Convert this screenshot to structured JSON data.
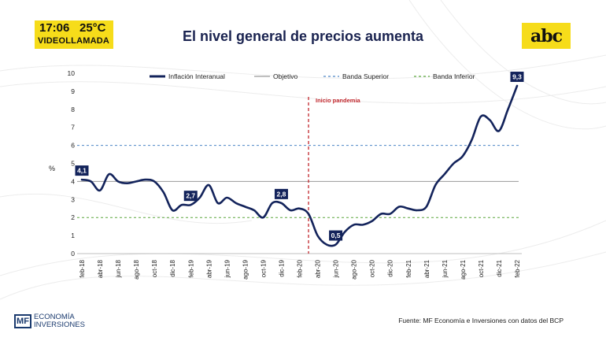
{
  "overlay": {
    "time": "17:06",
    "temperature": "25°C",
    "label": "VIDEOLLAMADA"
  },
  "header": {
    "title": "El nivel general de precios aumenta",
    "logo_text": "abc"
  },
  "footer": {
    "brand_line1": "ECONOMÍA",
    "brand_line2": "INVERSIONES",
    "brand_mark": "MF",
    "source": "Fuente: MF Economía e Inversiones con datos del BCP"
  },
  "chart_data": {
    "type": "line",
    "ylabel": "%",
    "ylim": [
      0,
      10
    ],
    "yticks": [
      0,
      1,
      2,
      3,
      4,
      5,
      6,
      7,
      8,
      9,
      10
    ],
    "months": [
      "feb-18",
      "mar-18",
      "abr-18",
      "may-18",
      "jun-18",
      "jul-18",
      "ago-18",
      "sep-18",
      "oct-18",
      "nov-18",
      "dic-18",
      "ene-19",
      "feb-19",
      "mar-19",
      "abr-19",
      "may-19",
      "jun-19",
      "jul-19",
      "ago-19",
      "sep-19",
      "oct-19",
      "nov-19",
      "dic-19",
      "ene-20",
      "feb-20",
      "mar-20",
      "abr-20",
      "may-20",
      "jun-20",
      "jul-20",
      "ago-20",
      "sep-20",
      "oct-20",
      "nov-20",
      "dic-20",
      "ene-21",
      "feb-21",
      "mar-21",
      "abr-21",
      "may-21",
      "jun-21",
      "jul-21",
      "ago-21",
      "sep-21",
      "oct-21",
      "nov-21",
      "dic-21",
      "ene-22",
      "feb-22"
    ],
    "xtick_labels": [
      "feb-18",
      "abr-18",
      "jun-18",
      "ago-18",
      "oct-18",
      "dic-18",
      "feb-19",
      "abr-19",
      "jun-19",
      "ago-19",
      "oct-19",
      "dic-19",
      "feb-20",
      "abr-20",
      "jun-20",
      "ago-20",
      "oct-20",
      "dic-20",
      "feb-21",
      "abr-21",
      "jun-21",
      "ago-21",
      "oct-21",
      "dic-21",
      "feb-22"
    ],
    "series": [
      {
        "name": "Inflación Interanual",
        "color": "#13235b",
        "style": "solid",
        "values": [
          4.1,
          4.0,
          3.5,
          4.4,
          4.0,
          3.9,
          4.0,
          4.1,
          4.0,
          3.4,
          2.4,
          2.7,
          2.7,
          3.1,
          3.8,
          2.8,
          3.1,
          2.8,
          2.6,
          2.4,
          2.0,
          2.8,
          2.8,
          2.4,
          2.5,
          2.2,
          1.0,
          0.5,
          0.5,
          1.2,
          1.6,
          1.6,
          1.8,
          2.2,
          2.2,
          2.6,
          2.5,
          2.4,
          2.6,
          3.8,
          4.4,
          5.0,
          5.4,
          6.3,
          7.6,
          7.4,
          6.8,
          8.0,
          9.3
        ]
      },
      {
        "name": "Objetivo",
        "color": "#9a9a9a",
        "style": "solid",
        "value": 4
      },
      {
        "name": "Banda Superior",
        "color": "#4f86c6",
        "style": "dashed",
        "value": 6
      },
      {
        "name": "Banda Inferior",
        "color": "#5aa63c",
        "style": "dashed",
        "value": 2
      }
    ],
    "data_labels": [
      {
        "month": "feb-18",
        "text": "4,1"
      },
      {
        "month": "feb-19",
        "text": "2,7"
      },
      {
        "month": "dic-19",
        "text": "2,8"
      },
      {
        "month": "jun-20",
        "text": "0,5"
      },
      {
        "month": "feb-22",
        "text": "9,3"
      }
    ],
    "annotations": [
      {
        "month": "mar-20",
        "text": "Inicio pandemia",
        "color": "#c1272d"
      }
    ],
    "legend_position": "top"
  }
}
